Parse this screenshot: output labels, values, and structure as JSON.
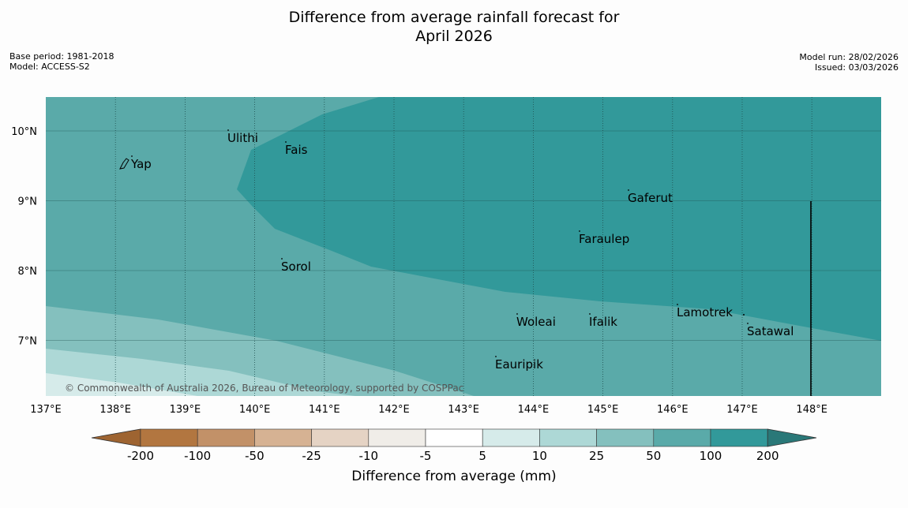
{
  "title": {
    "line1": "Difference from average rainfall forecast for",
    "line2": "April 2026"
  },
  "meta": {
    "base_period": "Base period: 1981-2018",
    "model": "Model: ACCESS-S2",
    "model_run": "Model run: 28/02/2026",
    "issued": "Issued: 03/03/2026"
  },
  "map": {
    "lon_range": [
      137,
      149
    ],
    "lat_range": [
      6.2,
      10.5
    ],
    "lon_ticks": [
      "137°E",
      "138°E",
      "139°E",
      "140°E",
      "141°E",
      "142°E",
      "143°E",
      "144°E",
      "145°E",
      "146°E",
      "147°E",
      "148°E"
    ],
    "lat_ticks": [
      "10°N",
      "9°N",
      "8°N",
      "7°N"
    ],
    "copyright": "© Commonwealth of Australia 2026, Bureau of Meteorology, supported by COSPPac",
    "places": [
      {
        "name": "Yap"
      },
      {
        "name": "Ulithi"
      },
      {
        "name": "Fais"
      },
      {
        "name": "Gaferut"
      },
      {
        "name": "Faraulep"
      },
      {
        "name": "Sorol"
      },
      {
        "name": "Lamotrek"
      },
      {
        "name": "Woleai"
      },
      {
        "name": "Ifalik"
      },
      {
        "name": "Satawal"
      },
      {
        "name": "Eauripik"
      }
    ]
  },
  "colorbar": {
    "ticks": [
      "-200",
      "-100",
      "-50",
      "-25",
      "-10",
      "-5",
      "5",
      "10",
      "25",
      "50",
      "100",
      "200"
    ],
    "colors": [
      "#9e6431",
      "#b27640",
      "#c29168",
      "#d6b293",
      "#e5d3c4",
      "#f0ede8",
      "#ffffff",
      "#d6ebea",
      "#add8d6",
      "#84c0be",
      "#5aaaa9",
      "#32999a",
      "#2a7878"
    ],
    "label": "Difference from average (mm)"
  }
}
